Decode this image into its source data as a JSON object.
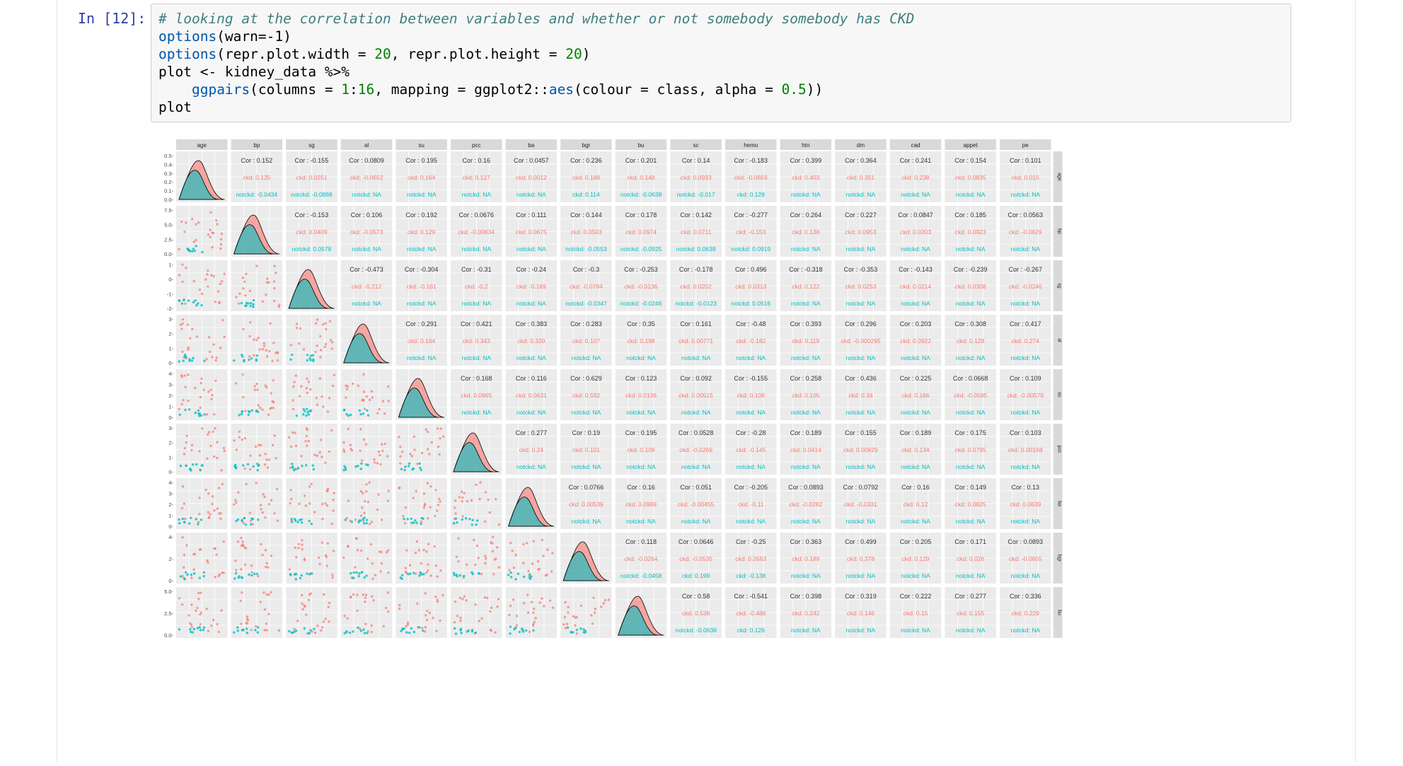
{
  "cell": {
    "prompt": "In [12]:",
    "code_lines": [
      {
        "segs": [
          [
            "cm",
            "# looking at the correlation between variables and whether or not somebody somebody has CKD"
          ]
        ]
      },
      {
        "segs": [
          [
            "fn",
            "options"
          ],
          [
            "",
            "(warn=-1)"
          ]
        ]
      },
      {
        "segs": [
          [
            "fn",
            "options"
          ],
          [
            "",
            "(repr.plot.width = "
          ],
          [
            "num",
            "20"
          ],
          [
            "",
            ", repr.plot.height = "
          ],
          [
            "num",
            "20"
          ],
          [
            "",
            ")"
          ]
        ]
      },
      {
        "segs": [
          [
            "",
            "plot <- kidney_data %>%"
          ]
        ]
      },
      {
        "segs": [
          [
            "",
            "    "
          ],
          [
            "fn",
            "ggpairs"
          ],
          [
            "",
            "(columns = "
          ],
          [
            "num",
            "1"
          ],
          [
            "",
            ":"
          ],
          [
            "num",
            "16"
          ],
          [
            "",
            ", mapping = ggplot2::"
          ],
          [
            "fn",
            "aes"
          ],
          [
            "",
            "(colour = class, alpha = "
          ],
          [
            "num",
            "0.5"
          ],
          [
            "",
            "))"
          ]
        ]
      },
      {
        "segs": [
          [
            "",
            "plot"
          ]
        ]
      }
    ]
  },
  "chart_data": {
    "type": "scatter",
    "plot_kind": "ggpairs scatterplot matrix",
    "variables": [
      "age",
      "bp",
      "sg",
      "al",
      "su",
      "pcc",
      "ba",
      "bgr",
      "bu",
      "sc",
      "hemo",
      "htn",
      "dm",
      "cad",
      "appet",
      "pe"
    ],
    "groups": [
      "ckd",
      "notckd"
    ],
    "colors": {
      "ckd": "#f8766d",
      "notckd": "#00bfc4",
      "cor": "#333333",
      "strip": "#d9d9d9",
      "panel": "#ebebeb",
      "grid": "#ffffff"
    },
    "row_axis_ticks": [
      [
        "0.5",
        "0.4",
        "0.3",
        "0.2",
        "0.1",
        "0.0"
      ],
      [
        "7.5",
        "5.0",
        "2.5",
        "0.0"
      ],
      [
        "1",
        "0",
        "-1",
        "-2"
      ],
      [
        "3",
        "2",
        "1",
        "0"
      ],
      [
        "4",
        "3",
        "2",
        "1",
        "0"
      ],
      [
        "3",
        "2",
        "1",
        "0"
      ],
      [
        "4",
        "3",
        "2",
        "1",
        "0"
      ],
      [
        "4",
        "2",
        "0"
      ],
      [
        "5.0",
        "2.5",
        "0.0"
      ]
    ],
    "upper_panels": [
      {
        "r": 0,
        "c": 1,
        "cor": "Cor : 0.152",
        "ckd": "ckd: 0.135",
        "notckd": "notckd: -0.0434"
      },
      {
        "r": 0,
        "c": 2,
        "cor": "Cor : -0.155",
        "ckd": "ckd: 0.0251",
        "notckd": "notckd: -0.0888"
      },
      {
        "r": 0,
        "c": 3,
        "cor": "Cor : 0.0809",
        "ckd": "ckd: -0.0652",
        "notckd": "notckd: NA"
      },
      {
        "r": 0,
        "c": 4,
        "cor": "Cor : 0.195",
        "ckd": "ckd: 0.164",
        "notckd": "notckd: NA"
      },
      {
        "r": 0,
        "c": 5,
        "cor": "Cor : 0.16",
        "ckd": "ckd: 0.127",
        "notckd": "notckd: NA"
      },
      {
        "r": 0,
        "c": 6,
        "cor": "Cor : 0.0457",
        "ckd": "ckd: 0.0012",
        "notckd": "notckd: NA"
      },
      {
        "r": 0,
        "c": 7,
        "cor": "Cor : 0.236",
        "ckd": "ckd: 0.188",
        "notckd": "ckd: 0.114"
      },
      {
        "r": 0,
        "c": 8,
        "cor": "Cor : 0.201",
        "ckd": "ckd: 0.148",
        "notckd": "notckd: -0.0638"
      },
      {
        "r": 0,
        "c": 9,
        "cor": "Cor : 0.14",
        "ckd": "ckd: 0.0933",
        "notckd": "notckd: -0.017"
      },
      {
        "r": 0,
        "c": 10,
        "cor": "Cor : -0.183",
        "ckd": "ckd: -0.0659",
        "notckd": "ckd: 0.129"
      },
      {
        "r": 0,
        "c": 11,
        "cor": "Cor : 0.399",
        "ckd": "ckd: 0.403",
        "notckd": "notckd: NA"
      },
      {
        "r": 0,
        "c": 12,
        "cor": "Cor : 0.364",
        "ckd": "ckd: 0.351",
        "notckd": "notckd: NA"
      },
      {
        "r": 0,
        "c": 13,
        "cor": "Cor : 0.241",
        "ckd": "ckd: 0.238",
        "notckd": "notckd: NA"
      },
      {
        "r": 0,
        "c": 14,
        "cor": "Cor : 0.154",
        "ckd": "ckd: 0.0835",
        "notckd": "notckd: NA"
      },
      {
        "r": 0,
        "c": 15,
        "cor": "Cor : 0.101",
        "ckd": "ckd: 0.015",
        "notckd": "notckd: NA"
      },
      {
        "r": 1,
        "c": 2,
        "cor": "Cor : -0.153",
        "ckd": "ckd: 0.0409",
        "notckd": "notckd: 0.0578"
      },
      {
        "r": 1,
        "c": 3,
        "cor": "Cor : 0.106",
        "ckd": "ckd: -0.0573",
        "notckd": "notckd: NA"
      },
      {
        "r": 1,
        "c": 4,
        "cor": "Cor : 0.192",
        "ckd": "ckd: 0.129",
        "notckd": "notckd: NA"
      },
      {
        "r": 1,
        "c": 5,
        "cor": "Cor : 0.0676",
        "ckd": "ckd: -0.00834",
        "notckd": "notckd: NA"
      },
      {
        "r": 1,
        "c": 6,
        "cor": "Cor : 0.111",
        "ckd": "ckd: 0.0675",
        "notckd": "notckd: NA"
      },
      {
        "r": 1,
        "c": 7,
        "cor": "Cor : 0.144",
        "ckd": "ckd: 0.0503",
        "notckd": "notckd: -0.0553"
      },
      {
        "r": 1,
        "c": 8,
        "cor": "Cor : 0.178",
        "ckd": "ckd: 0.0974",
        "notckd": "notckd: -0.0925"
      },
      {
        "r": 1,
        "c": 9,
        "cor": "Cor : 0.142",
        "ckd": "ckd: 0.0711",
        "notckd": "notckd: 0.0639"
      },
      {
        "r": 1,
        "c": 10,
        "cor": "Cor : -0.277",
        "ckd": "ckd: -0.153",
        "notckd": "notckd: 0.0919"
      },
      {
        "r": 1,
        "c": 11,
        "cor": "Cor : 0.264",
        "ckd": "ckd: 0.138",
        "notckd": "notckd: NA"
      },
      {
        "r": 1,
        "c": 12,
        "cor": "Cor : 0.227",
        "ckd": "ckd: 0.0953",
        "notckd": "notckd: NA"
      },
      {
        "r": 1,
        "c": 13,
        "cor": "Cor : 0.0847",
        "ckd": "ckd: 0.0203",
        "notckd": "notckd: NA"
      },
      {
        "r": 1,
        "c": 14,
        "cor": "Cor : 0.185",
        "ckd": "ckd: 0.0923",
        "notckd": "notckd: NA"
      },
      {
        "r": 1,
        "c": 15,
        "cor": "Cor : 0.0563",
        "ckd": "ckd: -0.0629",
        "notckd": "notckd: NA"
      },
      {
        "r": 2,
        "c": 3,
        "cor": "Cor : -0.473",
        "ckd": "ckd: -0.212",
        "notckd": "notckd: NA"
      },
      {
        "r": 2,
        "c": 4,
        "cor": "Cor : -0.304",
        "ckd": "ckd: -0.161",
        "notckd": "notckd: NA"
      },
      {
        "r": 2,
        "c": 5,
        "cor": "Cor : -0.31",
        "ckd": "ckd: -0.2",
        "notckd": "notckd: NA"
      },
      {
        "r": 2,
        "c": 6,
        "cor": "Cor : -0.24",
        "ckd": "ckd: -0.169",
        "notckd": "notckd: NA"
      },
      {
        "r": 2,
        "c": 7,
        "cor": "Cor : -0.3",
        "ckd": "ckd: -0.0784",
        "notckd": "notckd: -0.0347"
      },
      {
        "r": 2,
        "c": 8,
        "cor": "Cor : -0.253",
        "ckd": "ckd: -0.0136",
        "notckd": "notckd: -0.0246"
      },
      {
        "r": 2,
        "c": 9,
        "cor": "Cor : -0.178",
        "ckd": "ckd: 0.0202",
        "notckd": "notckd: -0.0123"
      },
      {
        "r": 2,
        "c": 10,
        "cor": "Cor : 0.496",
        "ckd": "ckd: 0.0313",
        "notckd": "notckd: 0.0516"
      },
      {
        "r": 2,
        "c": 11,
        "cor": "Cor : -0.318",
        "ckd": "ckd: 0.122",
        "notckd": "notckd: NA"
      },
      {
        "r": 2,
        "c": 12,
        "cor": "Cor : -0.353",
        "ckd": "ckd: 0.0253",
        "notckd": "notckd: NA"
      },
      {
        "r": 2,
        "c": 13,
        "cor": "Cor : -0.143",
        "ckd": "ckd: 0.0214",
        "notckd": "notckd: NA"
      },
      {
        "r": 2,
        "c": 14,
        "cor": "Cor : -0.239",
        "ckd": "ckd: 0.0308",
        "notckd": "notckd: NA"
      },
      {
        "r": 2,
        "c": 15,
        "cor": "Cor : -0.267",
        "ckd": "ckd: -0.0246",
        "notckd": "notckd: NA"
      },
      {
        "r": 3,
        "c": 4,
        "cor": "Cor : 0.291",
        "ckd": "ckd: 0.164",
        "notckd": "notckd: NA"
      },
      {
        "r": 3,
        "c": 5,
        "cor": "Cor : 0.421",
        "ckd": "ckd: 0.343",
        "notckd": "notckd: NA"
      },
      {
        "r": 3,
        "c": 6,
        "cor": "Cor : 0.383",
        "ckd": "ckd: 0.339",
        "notckd": "notckd: NA"
      },
      {
        "r": 3,
        "c": 7,
        "cor": "Cor : 0.283",
        "ckd": "ckd: 0.107",
        "notckd": "notckd: NA"
      },
      {
        "r": 3,
        "c": 8,
        "cor": "Cor : 0.35",
        "ckd": "ckd: 0.198",
        "notckd": "notckd: NA"
      },
      {
        "r": 3,
        "c": 9,
        "cor": "Cor : 0.161",
        "ckd": "ckd: 0.00771",
        "notckd": "notckd: NA"
      },
      {
        "r": 3,
        "c": 10,
        "cor": "Cor : -0.48",
        "ckd": "ckd: -0.182",
        "notckd": "notckd: NA"
      },
      {
        "r": 3,
        "c": 11,
        "cor": "Cor : 0.393",
        "ckd": "ckd: 0.119",
        "notckd": "notckd: NA"
      },
      {
        "r": 3,
        "c": 12,
        "cor": "Cor : 0.296",
        "ckd": "ckd: -0.000295",
        "notckd": "notckd: NA"
      },
      {
        "r": 3,
        "c": 13,
        "cor": "Cor : 0.203",
        "ckd": "ckd: 0.0922",
        "notckd": "notckd: NA"
      },
      {
        "r": 3,
        "c": 14,
        "cor": "Cor : 0.308",
        "ckd": "ckd: 0.128",
        "notckd": "notckd: NA"
      },
      {
        "r": 3,
        "c": 15,
        "cor": "Cor : 0.417",
        "ckd": "ckd: 0.274",
        "notckd": "notckd: NA"
      },
      {
        "r": 4,
        "c": 5,
        "cor": "Cor : 0.168",
        "ckd": "ckd: 0.0965",
        "notckd": "notckd: NA"
      },
      {
        "r": 4,
        "c": 6,
        "cor": "Cor : 0.116",
        "ckd": "ckd: 0.0631",
        "notckd": "notckd: NA"
      },
      {
        "r": 4,
        "c": 7,
        "cor": "Cor : 0.629",
        "ckd": "ckd: 0.592",
        "notckd": "notckd: NA"
      },
      {
        "r": 4,
        "c": 8,
        "cor": "Cor : 0.123",
        "ckd": "ckd: 0.0136",
        "notckd": "notckd: NA"
      },
      {
        "r": 4,
        "c": 9,
        "cor": "Cor : 0.092",
        "ckd": "ckd: 0.00515",
        "notckd": "notckd: NA"
      },
      {
        "r": 4,
        "c": 10,
        "cor": "Cor : -0.155",
        "ckd": "ckd: 0.108",
        "notckd": "notckd: NA"
      },
      {
        "r": 4,
        "c": 11,
        "cor": "Cor : 0.258",
        "ckd": "ckd: 0.105",
        "notckd": "notckd: NA"
      },
      {
        "r": 4,
        "c": 12,
        "cor": "Cor : 0.436",
        "ckd": "ckd: 0.34",
        "notckd": "notckd: NA"
      },
      {
        "r": 4,
        "c": 13,
        "cor": "Cor : 0.225",
        "ckd": "ckd: 0.166",
        "notckd": "notckd: NA"
      },
      {
        "r": 4,
        "c": 14,
        "cor": "Cor : 0.0668",
        "ckd": "ckd: -0.0585",
        "notckd": "notckd: NA"
      },
      {
        "r": 4,
        "c": 15,
        "cor": "Cor : 0.109",
        "ckd": "ckd: -0.00579",
        "notckd": "notckd: NA"
      },
      {
        "r": 5,
        "c": 6,
        "cor": "Cor : 0.277",
        "ckd": "ckd: 0.24",
        "notckd": "notckd: NA"
      },
      {
        "r": 5,
        "c": 7,
        "cor": "Cor : 0.19",
        "ckd": "ckd: 0.101",
        "notckd": "notckd: NA"
      },
      {
        "r": 5,
        "c": 8,
        "cor": "Cor : 0.195",
        "ckd": "ckd: 0.109",
        "notckd": "notckd: NA"
      },
      {
        "r": 5,
        "c": 9,
        "cor": "Cor : 0.0528",
        "ckd": "ckd: -0.0269",
        "notckd": "notckd: NA"
      },
      {
        "r": 5,
        "c": 10,
        "cor": "Cor : -0.28",
        "ckd": "ckd: -0.145",
        "notckd": "notckd: NA"
      },
      {
        "r": 5,
        "c": 11,
        "cor": "Cor : 0.189",
        "ckd": "ckd: 0.0414",
        "notckd": "notckd: NA"
      },
      {
        "r": 5,
        "c": 12,
        "cor": "Cor : 0.155",
        "ckd": "ckd: 0.00829",
        "notckd": "notckd: NA"
      },
      {
        "r": 5,
        "c": 13,
        "cor": "Cor : 0.189",
        "ckd": "ckd: 0.134",
        "notckd": "notckd: NA"
      },
      {
        "r": 5,
        "c": 14,
        "cor": "Cor : 0.175",
        "ckd": "ckd: 0.0795",
        "notckd": "notckd: NA"
      },
      {
        "r": 5,
        "c": 15,
        "cor": "Cor : 0.103",
        "ckd": "ckd: 0.00168",
        "notckd": "notckd: NA"
      },
      {
        "r": 6,
        "c": 7,
        "cor": "Cor : 0.0766",
        "ckd": "ckd: 0.00539",
        "notckd": "notckd: NA"
      },
      {
        "r": 6,
        "c": 8,
        "cor": "Cor : 0.16",
        "ckd": "ckd: 0.0989",
        "notckd": "notckd: NA"
      },
      {
        "r": 6,
        "c": 9,
        "cor": "Cor : 0.051",
        "ckd": "ckd: -0.00455",
        "notckd": "notckd: NA"
      },
      {
        "r": 6,
        "c": 10,
        "cor": "Cor : -0.205",
        "ckd": "ckd: -0.11",
        "notckd": "notckd: NA"
      },
      {
        "r": 6,
        "c": 11,
        "cor": "Cor : 0.0893",
        "ckd": "ckd: -0.0282",
        "notckd": "notckd: NA"
      },
      {
        "r": 6,
        "c": 12,
        "cor": "Cor : 0.0792",
        "ckd": "ckd: -0.0331",
        "notckd": "notckd: NA"
      },
      {
        "r": 6,
        "c": 13,
        "cor": "Cor : 0.16",
        "ckd": "ckd: 0.12",
        "notckd": "notckd: NA"
      },
      {
        "r": 6,
        "c": 14,
        "cor": "Cor : 0.149",
        "ckd": "ckd: 0.0825",
        "notckd": "notckd: NA"
      },
      {
        "r": 6,
        "c": 15,
        "cor": "Cor : 0.13",
        "ckd": "ckd: 0.0639",
        "notckd": "notckd: NA"
      },
      {
        "r": 7,
        "c": 8,
        "cor": "Cor : 0.118",
        "ckd": "ckd: -0.0264",
        "notckd": "notckd: -0.0458"
      },
      {
        "r": 7,
        "c": 9,
        "cor": "Cor : 0.0646",
        "ckd": "ckd: -0.0535",
        "notckd": "ckd: 0.199"
      },
      {
        "r": 7,
        "c": 10,
        "cor": "Cor : -0.25",
        "ckd": "ckd: 0.0563",
        "notckd": "ckd: -0.138"
      },
      {
        "r": 7,
        "c": 11,
        "cor": "Cor : 0.363",
        "ckd": "ckd: 0.189",
        "notckd": "notckd: NA"
      },
      {
        "r": 7,
        "c": 12,
        "cor": "Cor : 0.499",
        "ckd": "ckd: 0.378",
        "notckd": "notckd: NA"
      },
      {
        "r": 7,
        "c": 13,
        "cor": "Cor : 0.205",
        "ckd": "ckd: 0.129",
        "notckd": "notckd: NA"
      },
      {
        "r": 7,
        "c": 14,
        "cor": "Cor : 0.171",
        "ckd": "ckd: 0.026",
        "notckd": "notckd: NA"
      },
      {
        "r": 7,
        "c": 15,
        "cor": "Cor : 0.0893",
        "ckd": "ckd: -0.0655",
        "notckd": "notckd: NA"
      },
      {
        "r": 8,
        "c": 9,
        "cor": "Cor : 0.58",
        "ckd": "ckd: 0.538",
        "notckd": "notckd: -0.0638"
      },
      {
        "r": 8,
        "c": 10,
        "cor": "Cor : -0.541",
        "ckd": "ckd: -0.488",
        "notckd": "ckd: 0.126"
      },
      {
        "r": 8,
        "c": 11,
        "cor": "Cor : 0.398",
        "ckd": "ckd: 0.242",
        "notckd": "notckd: NA"
      },
      {
        "r": 8,
        "c": 12,
        "cor": "Cor : 0.319",
        "ckd": "ckd: 0.146",
        "notckd": "notckd: NA"
      },
      {
        "r": 8,
        "c": 13,
        "cor": "Cor : 0.222",
        "ckd": "ckd: 0.15",
        "notckd": "notckd: NA"
      },
      {
        "r": 8,
        "c": 14,
        "cor": "Cor : 0.277",
        "ckd": "ckd: 0.155",
        "notckd": "notckd: NA"
      },
      {
        "r": 8,
        "c": 15,
        "cor": "Cor : 0.336",
        "ckd": "ckd: 0.229",
        "notckd": "notckd: NA"
      }
    ]
  }
}
